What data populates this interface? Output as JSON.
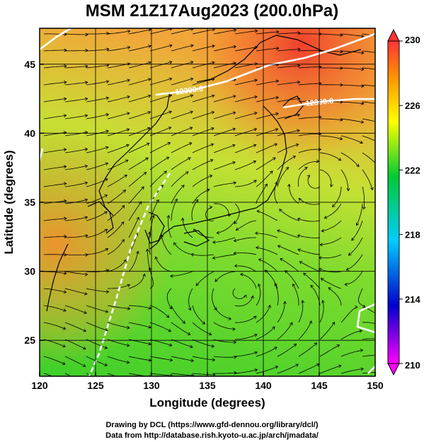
{
  "title": "MSM 21Z17Aug2023 (200.0hPa)",
  "credits": {
    "drawing": "Drawing by DCL (https://www.gfd-dennou.org/library/dcl/)",
    "data": "Data from http://database.rish.kyoto-u.ac.jp/arch/jmadata/"
  },
  "chart_data": {
    "type": "heatmap",
    "xlabel": "Longitude (degrees)",
    "ylabel": "Latitude  (degrees)",
    "xlim": [
      120,
      150
    ],
    "ylim": [
      22.4,
      47.6
    ],
    "xticks": [
      "120",
      "125",
      "130",
      "135",
      "140",
      "145",
      "150"
    ],
    "yticks": [
      "25",
      "30",
      "35",
      "40",
      "45"
    ],
    "grid": true,
    "colorbar": {
      "min": 210,
      "max": 230,
      "ticks": [
        "210",
        "214",
        "218",
        "222",
        "226",
        "230"
      ],
      "colors": [
        "#ff00ff",
        "#0000cc",
        "#00ccff",
        "#00cc33",
        "#ffff00",
        "#ff9900",
        "#ff3333"
      ]
    },
    "contour_labels": [
      "12300.0",
      "12300.0"
    ],
    "vortex_centers": [
      [
        144.8,
        36.6
      ],
      [
        137.8,
        28.6
      ],
      [
        135.4,
        34.0
      ]
    ]
  }
}
